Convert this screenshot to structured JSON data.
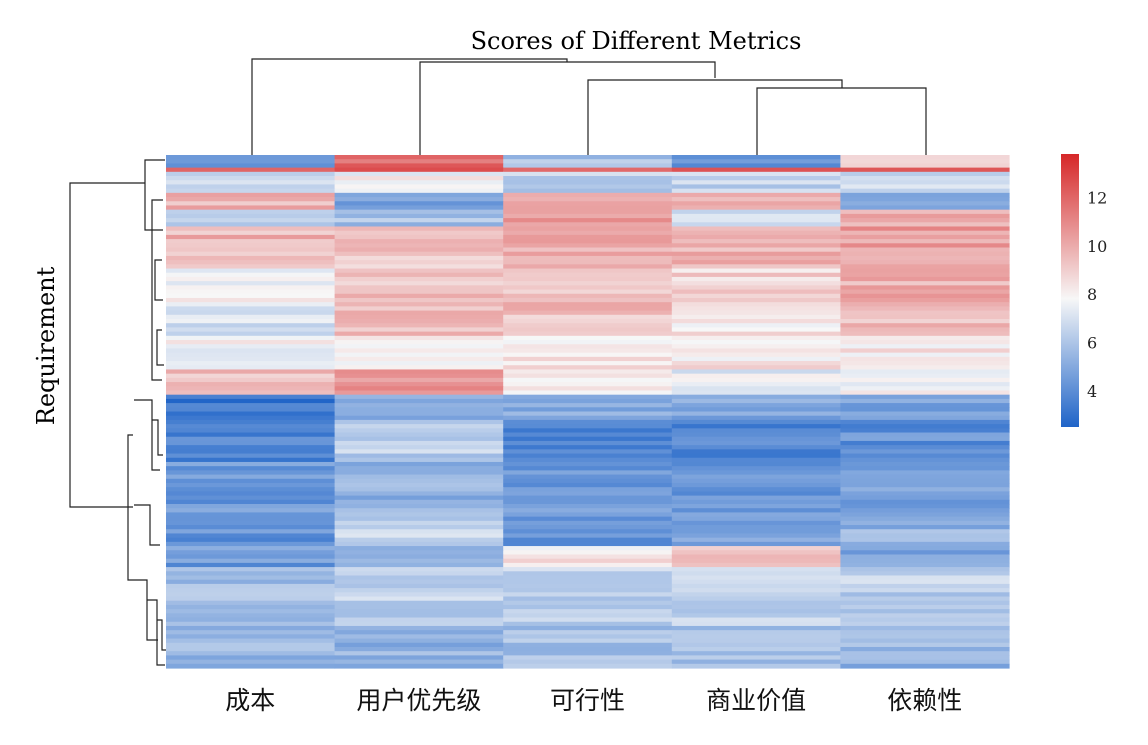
{
  "chart_data": {
    "type": "heatmap",
    "title": "Scores of Different Metrics",
    "ylabel": "Requirement",
    "xlabel": "",
    "columns": [
      "成本",
      "用户优先级",
      "可行性",
      "商业价值",
      "依赖性"
    ],
    "column_order_note": "",
    "value_range": [
      2.5,
      13.8
    ],
    "colorbar": {
      "ticks": [
        4,
        6,
        8,
        10,
        12
      ],
      "colors": [
        "#1f64c8",
        "#f7f7f7",
        "#d62728"
      ],
      "placement": "right"
    },
    "row_clusters": [
      {
        "rows": 3,
        "values": [
          4.5,
          12.0,
          6.0,
          4.5,
          9.0
        ]
      },
      {
        "rows": 1,
        "values": [
          12.5,
          12.5,
          12.5,
          12.5,
          12.5
        ]
      },
      {
        "rows": 5,
        "values": [
          7.0,
          8.0,
          6.5,
          6.5,
          7.0
        ]
      },
      {
        "rows": 4,
        "values": [
          9.8,
          5.0,
          10.5,
          10.0,
          5.0
        ]
      },
      {
        "rows": 4,
        "values": [
          6.0,
          6.0,
          10.5,
          7.0,
          10.0
        ]
      },
      {
        "rows": 10,
        "values": [
          9.8,
          9.5,
          10.0,
          10.0,
          10.5
        ]
      },
      {
        "rows": 8,
        "values": [
          8.0,
          9.5,
          9.5,
          9.0,
          10.0
        ]
      },
      {
        "rows": 8,
        "values": [
          7.0,
          9.8,
          9.5,
          8.5,
          9.5
        ]
      },
      {
        "rows": 8,
        "values": [
          8.0,
          8.0,
          8.5,
          8.5,
          8.5
        ]
      },
      {
        "rows": 6,
        "values": [
          9.5,
          10.5,
          8.5,
          7.5,
          8.0
        ]
      },
      {
        "rows": 6,
        "values": [
          3.2,
          5.5,
          5.0,
          5.0,
          5.0
        ]
      },
      {
        "rows": 10,
        "values": [
          3.8,
          6.5,
          4.0,
          3.8,
          4.2
        ]
      },
      {
        "rows": 14,
        "values": [
          4.5,
          5.5,
          4.5,
          4.5,
          5.0
        ]
      },
      {
        "rows": 6,
        "values": [
          4.2,
          7.0,
          4.5,
          5.0,
          5.5
        ]
      },
      {
        "rows": 5,
        "values": [
          4.5,
          6.0,
          8.5,
          9.5,
          5.0
        ]
      },
      {
        "rows": 14,
        "values": [
          6.0,
          6.5,
          6.5,
          6.5,
          6.5
        ]
      },
      {
        "rows": 10,
        "values": [
          5.5,
          5.5,
          6.0,
          6.0,
          5.5
        ]
      }
    ]
  }
}
